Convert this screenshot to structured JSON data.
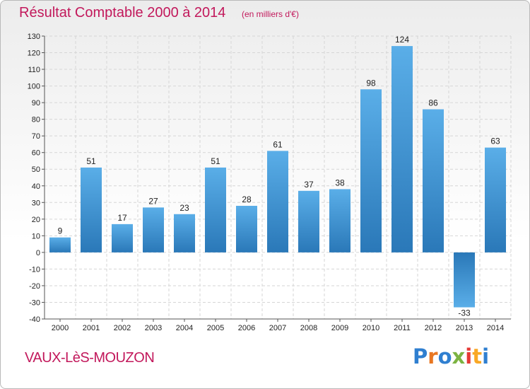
{
  "header": {
    "title": "Résultat Comptable 2000 à 2014",
    "subtitle": "(en milliers d'€)"
  },
  "footer": {
    "commune": "VAUX-LèS-MOUZON",
    "logo_letters": [
      "P",
      "r",
      "o",
      "x",
      "i",
      "t",
      "i"
    ],
    "logo_colors": [
      "#2f7fd0",
      "#e87722",
      "#2f7fd0",
      "#7cb342",
      "#e53935",
      "#f9a825",
      "#2f7fd0"
    ]
  },
  "colors": {
    "title": "#c2185b",
    "bar_light": "#5aaee8",
    "bar_dark": "#2a78b8"
  },
  "chart_data": {
    "type": "bar",
    "title": "Résultat Comptable 2000 à 2014",
    "subtitle": "(en milliers d'€)",
    "xlabel": "",
    "ylabel": "",
    "ylim": [
      -40,
      130
    ],
    "yticks": [
      130,
      120,
      110,
      100,
      90,
      80,
      70,
      60,
      50,
      40,
      30,
      20,
      10,
      0,
      -10,
      -20,
      -30,
      -40
    ],
    "grid": true,
    "categories": [
      "2000",
      "2001",
      "2002",
      "2003",
      "2004",
      "2005",
      "2006",
      "2007",
      "2008",
      "2009",
      "2010",
      "2011",
      "2012",
      "2013",
      "2014"
    ],
    "values": [
      9,
      51,
      17,
      27,
      23,
      51,
      28,
      61,
      37,
      38,
      98,
      124,
      86,
      -33,
      63
    ]
  }
}
